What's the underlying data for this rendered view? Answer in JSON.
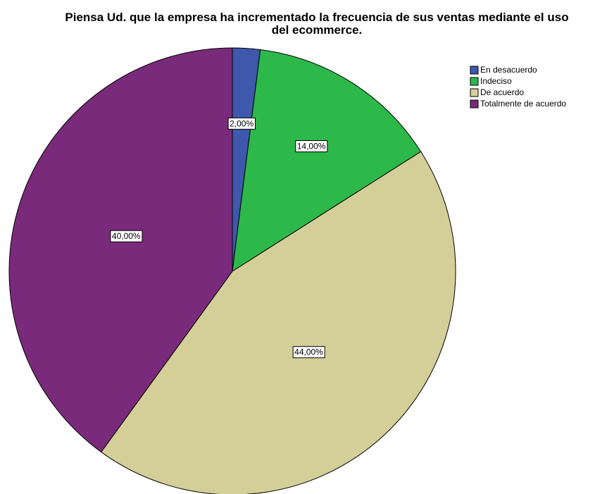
{
  "chart_data": {
    "type": "pie",
    "title": "Piensa Ud. que la empresa ha incrementado la frecuencia de sus ventas mediante el uso del ecommerce.",
    "categories": [
      "En desacuerdo",
      "Indeciso",
      "De acuerdo",
      "Totalmente de acuerdo"
    ],
    "values": [
      2,
      14,
      44,
      40
    ],
    "value_labels": [
      "2,00%",
      "14,00%",
      "44,00%",
      "40,00%"
    ],
    "colors": [
      "#3e58ac",
      "#2db84a",
      "#d4cf98",
      "#7a2a7a"
    ],
    "legend": "top-right"
  }
}
